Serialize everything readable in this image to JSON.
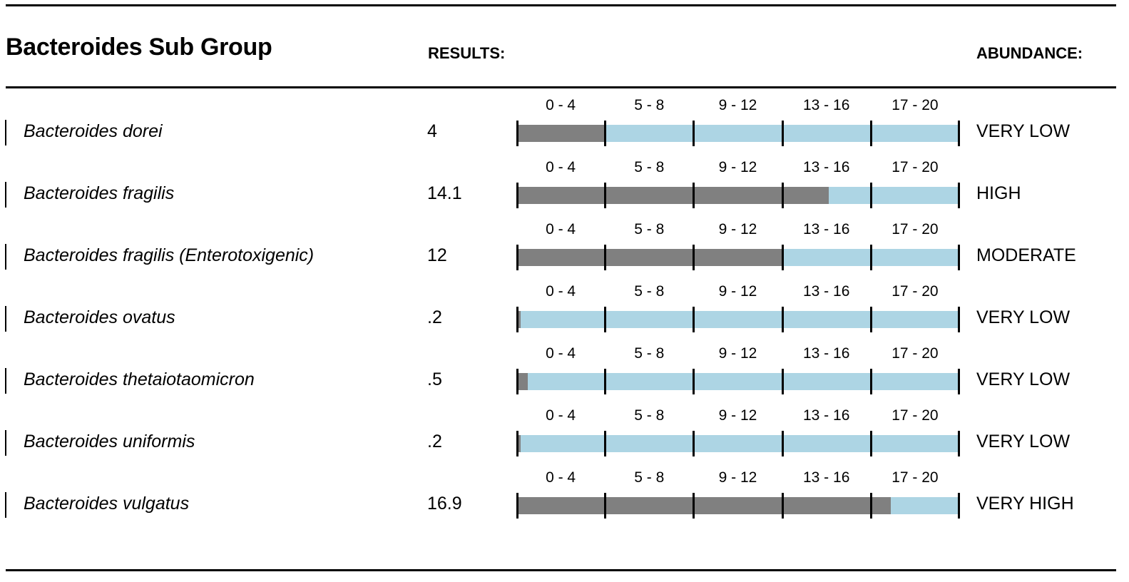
{
  "header": {
    "title": "Bacteroides Sub Group",
    "results_label": "RESULTS:",
    "abundance_label": "ABUNDANCE:"
  },
  "range_labels": [
    "0 - 4",
    "5 - 8",
    "9 - 12",
    "13 - 16",
    "17 - 20"
  ],
  "scale": {
    "min": 0,
    "max": 20
  },
  "colors": {
    "fill": "#808080",
    "track": "#add5e4",
    "rule": "#000000"
  },
  "rows": [
    {
      "name": "Bacteroides dorei",
      "result": "4",
      "value": 4,
      "abundance": "VERY LOW"
    },
    {
      "name": "Bacteroides fragilis",
      "result": "14.1",
      "value": 14.1,
      "abundance": "HIGH"
    },
    {
      "name": "Bacteroides fragilis (Enterotoxigenic)",
      "result": "12",
      "value": 12,
      "abundance": "MODERATE"
    },
    {
      "name": "Bacteroides ovatus",
      "result": ".2",
      "value": 0.2,
      "abundance": "VERY LOW"
    },
    {
      "name": "Bacteroides thetaiotaomicron",
      "result": ".5",
      "value": 0.5,
      "abundance": "VERY LOW"
    },
    {
      "name": "Bacteroides uniformis",
      "result": ".2",
      "value": 0.2,
      "abundance": "VERY LOW"
    },
    {
      "name": "Bacteroides vulgatus",
      "result": "16.9",
      "value": 16.9,
      "abundance": "VERY HIGH"
    }
  ]
}
